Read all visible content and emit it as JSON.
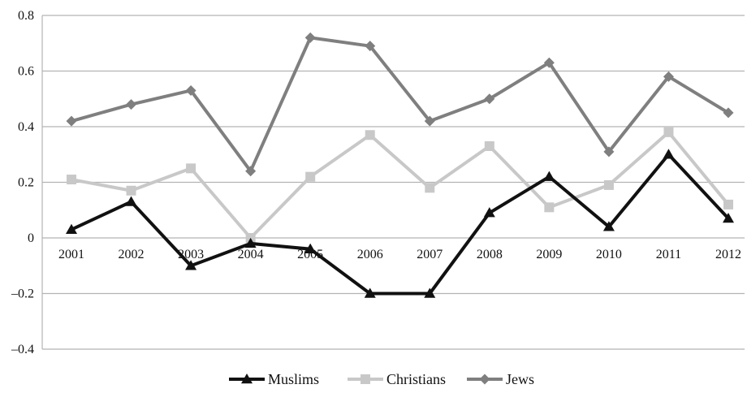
{
  "chart_data": {
    "type": "line",
    "title": "",
    "xlabel": "",
    "ylabel": "",
    "categories": [
      "2001",
      "2002",
      "2003",
      "2004",
      "2005",
      "2006",
      "2007",
      "2008",
      "2009",
      "2010",
      "2011",
      "2012"
    ],
    "ylim": [
      -0.4,
      0.8
    ],
    "yticks": [
      -0.4,
      -0.2,
      0,
      0.2,
      0.4,
      0.6,
      0.8
    ],
    "ytick_labels": [
      "–0.4",
      "–0.2",
      "0",
      "0.2",
      "0.4",
      "0.6",
      "0.8"
    ],
    "grid": true,
    "legend_position": "bottom",
    "series": [
      {
        "name": "Muslims",
        "color": "#111111",
        "marker": "triangle",
        "values": [
          0.03,
          0.13,
          -0.1,
          -0.02,
          -0.04,
          -0.2,
          -0.2,
          0.09,
          0.22,
          0.04,
          0.3,
          0.07
        ]
      },
      {
        "name": "Christians",
        "color": "#c8c8c8",
        "marker": "square",
        "values": [
          0.21,
          0.17,
          0.25,
          0.0,
          0.22,
          0.37,
          0.18,
          0.33,
          0.11,
          0.19,
          0.38,
          0.12
        ]
      },
      {
        "name": "Jews",
        "color": "#7f7f7f",
        "marker": "diamond",
        "values": [
          0.42,
          0.48,
          0.53,
          0.24,
          0.72,
          0.69,
          0.42,
          0.5,
          0.63,
          0.31,
          0.58,
          0.45
        ]
      }
    ]
  }
}
